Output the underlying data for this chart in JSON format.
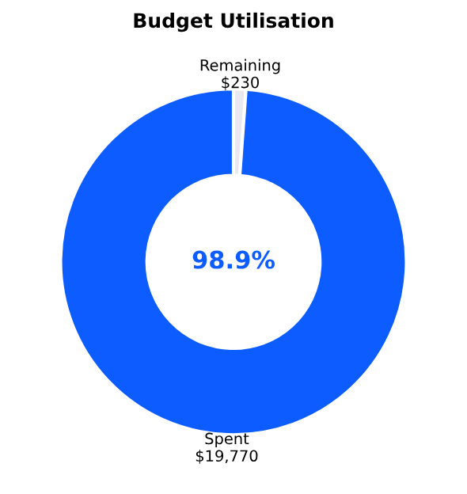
{
  "chart_data": {
    "type": "donut",
    "title": "Budget Utilisation",
    "categories": [
      "Remaining",
      "Spent"
    ],
    "values": [
      230,
      19770
    ],
    "value_labels": [
      "$230",
      "$19,770"
    ],
    "colors": [
      "#e8e8ee",
      "#0d5cff"
    ],
    "annotations": [
      "98.9%"
    ]
  }
}
